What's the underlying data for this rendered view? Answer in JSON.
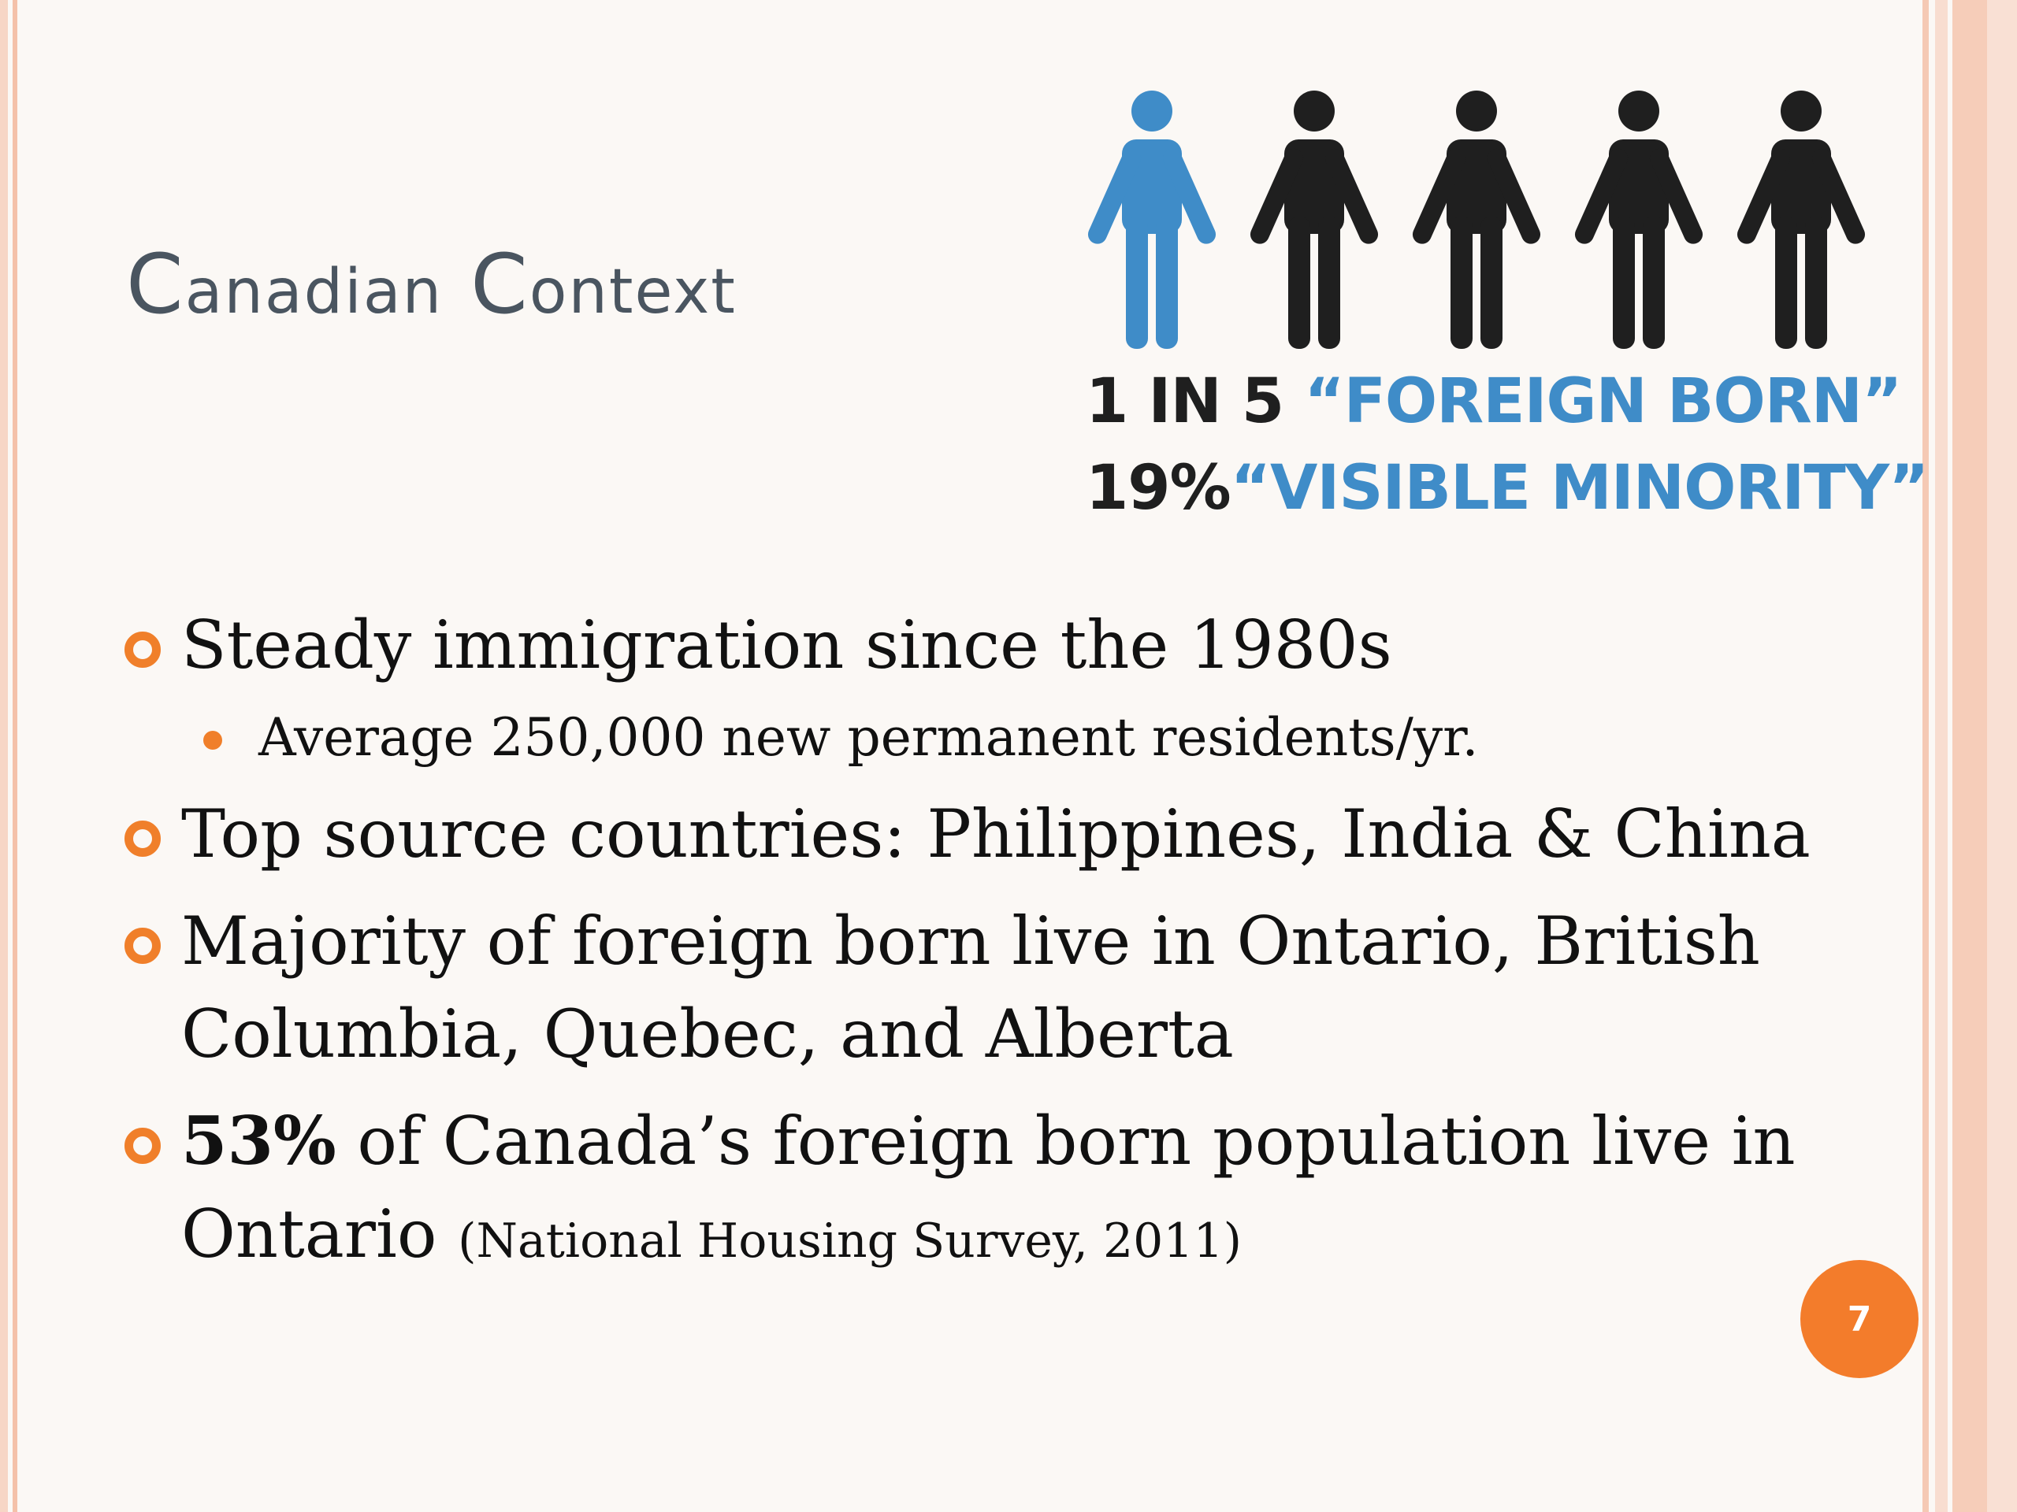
{
  "slide": {
    "title_first_letter_1": "C",
    "title_rest_1": "anadian",
    "title_first_letter_2": "C",
    "title_rest_2": "ontext"
  },
  "infographic": {
    "figure_colors": [
      "#3f8cc8",
      "#1f1f1f",
      "#1f1f1f",
      "#1f1f1f",
      "#1f1f1f"
    ],
    "stat1_num": "1 IN 5",
    "stat1_label": "“FOREIGN BORN”",
    "stat2_num": "19%",
    "stat2_label": "“VISIBLE MINORITY”"
  },
  "bullets": {
    "b1": "Steady immigration since the 1980s",
    "b1_sub": "Average 250,000 new permanent residents/yr.",
    "b2": "Top source countries: Philippines, India & China",
    "b3": "Majority of foreign born live in Ontario, British Columbia, Quebec, and Alberta",
    "b4_bold": "53%",
    "b4_text": " of Canada’s foreign born population live in Ontario ",
    "b4_cite": "(National Housing Survey, 2011)"
  },
  "page_number": "7",
  "colors": {
    "accent_orange": "#f07f2a",
    "figure_blue": "#3f8cc8",
    "title_gray": "#4a5560"
  }
}
